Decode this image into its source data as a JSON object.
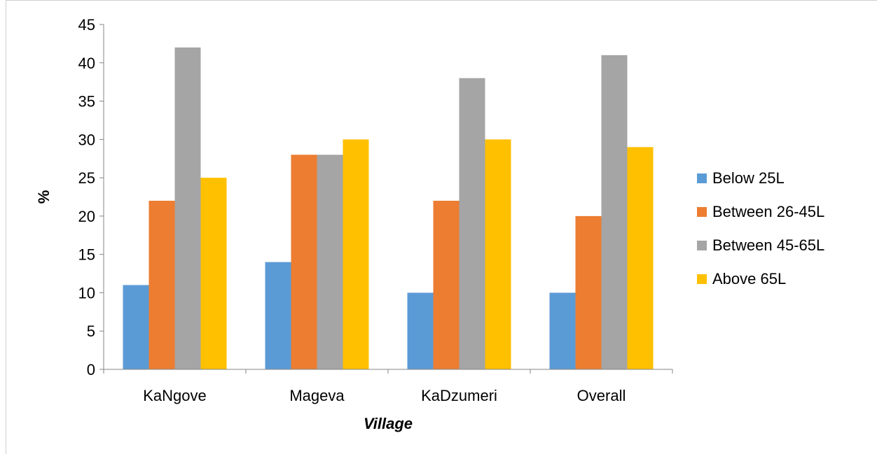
{
  "chart_data": {
    "type": "bar",
    "title": "",
    "xlabel": "Village",
    "ylabel": "%",
    "ylim": [
      0,
      45
    ],
    "yticks": [
      0,
      5,
      10,
      15,
      20,
      25,
      30,
      35,
      40,
      45
    ],
    "grid": false,
    "legend_position": "right",
    "categories": [
      "KaNgove",
      "Mageva",
      "KaDzumeri",
      "Overall"
    ],
    "series": [
      {
        "name": "Below 25L",
        "color": "#5B9BD5",
        "values": [
          11,
          14,
          10,
          10
        ]
      },
      {
        "name": "Between 26-45L",
        "color": "#ED7D31",
        "values": [
          22,
          28,
          22,
          20
        ]
      },
      {
        "name": "Between 45-65L",
        "color": "#A5A5A5",
        "values": [
          42,
          28,
          38,
          41
        ]
      },
      {
        "name": "Above 65L",
        "color": "#FFC000",
        "values": [
          25,
          30,
          30,
          29
        ]
      }
    ]
  }
}
